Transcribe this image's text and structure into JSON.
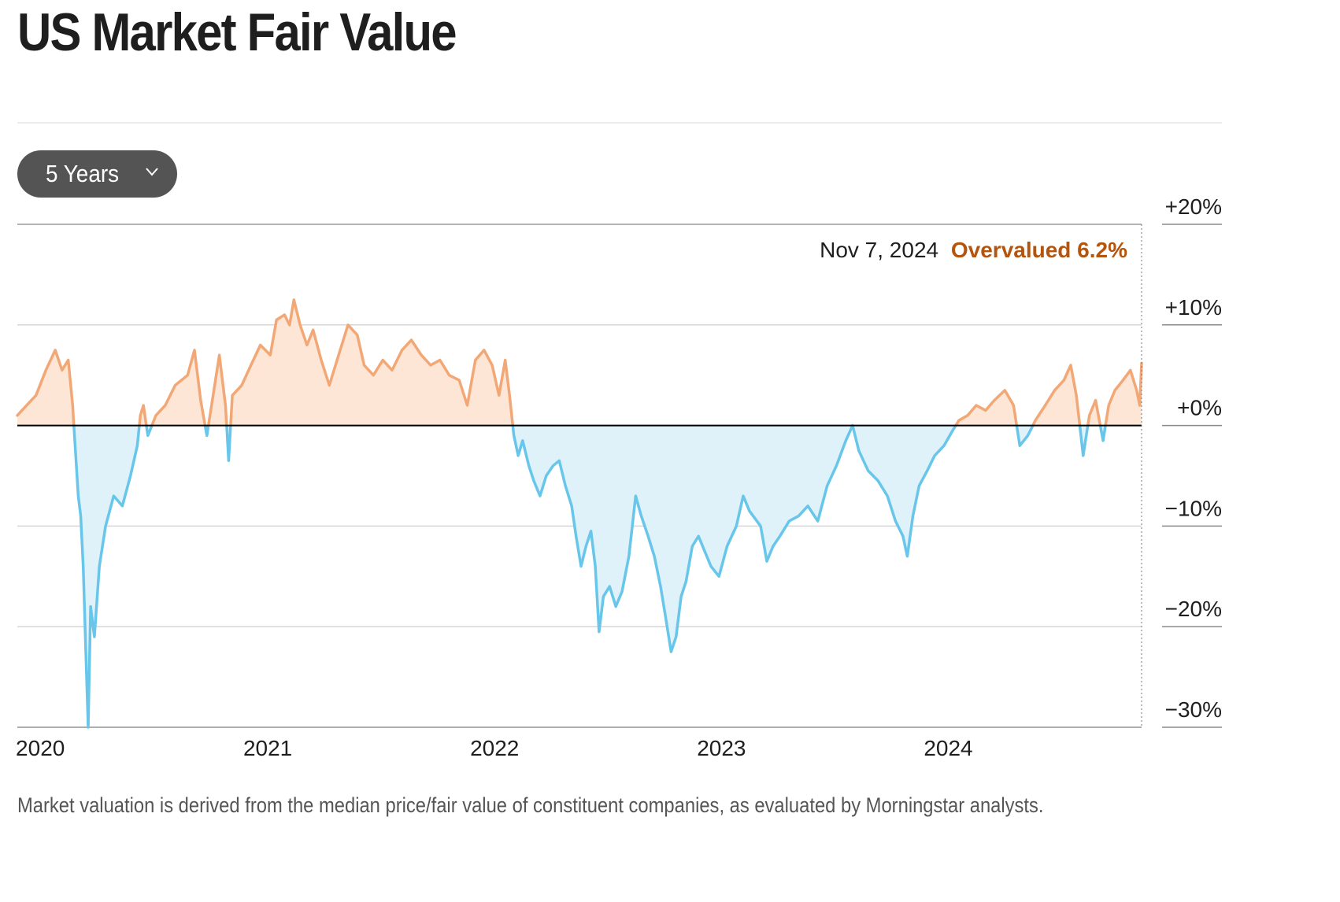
{
  "page": {
    "title": "US Market Fair Value",
    "footnote": "Market valuation is derived from the median price/fair value of constituent companies, as evaluated by Morningstar analysts."
  },
  "controls": {
    "range_select": {
      "label": "5 Years",
      "icon": "chevron-down-icon"
    }
  },
  "annotation": {
    "date": "Nov 7, 2024",
    "status": "Overvalued 6.2%"
  },
  "colors": {
    "overvalued_line": "#f2a876",
    "overvalued_fill": "#fde6d6",
    "undervalued_line": "#67c6e9",
    "undervalued_fill": "#dff2fa",
    "status_text": "#b5540c",
    "zero_line": "#000000",
    "grid": "#d6d6d6",
    "range_button": "#545454"
  },
  "chart_data": {
    "type": "area",
    "title": "US Market Fair Value",
    "xlabel": "",
    "ylabel": "",
    "x_ticks": [
      "2020",
      "2021",
      "2022",
      "2023",
      "2024"
    ],
    "y_ticks": [
      {
        "value": 20,
        "label": "+20%"
      },
      {
        "value": 10,
        "label": "+10%"
      },
      {
        "value": 0,
        "label": "+0%"
      },
      {
        "value": -10,
        "label": "−10%"
      },
      {
        "value": -20,
        "label": "−20%"
      },
      {
        "value": -30,
        "label": "−30%"
      }
    ],
    "ylim": [
      -30,
      20
    ],
    "xlim": [
      "2019-11-25",
      "2024-11-07"
    ],
    "grid": true,
    "legend": "none",
    "series": [
      {
        "points": [
          [
            "2019-11-25",
            1.0
          ],
          [
            "2019-12-10",
            2.0
          ],
          [
            "2019-12-25",
            3.0
          ],
          [
            "2020-01-10",
            5.5
          ],
          [
            "2020-01-25",
            7.5
          ],
          [
            "2020-02-05",
            5.5
          ],
          [
            "2020-02-15",
            6.5
          ],
          [
            "2020-02-22",
            2.0
          ],
          [
            "2020-02-26",
            -2.0
          ],
          [
            "2020-03-02",
            -7.0
          ],
          [
            "2020-03-06",
            -9.0
          ],
          [
            "2020-03-10",
            -14.0
          ],
          [
            "2020-03-14",
            -22.0
          ],
          [
            "2020-03-18",
            -30.0
          ],
          [
            "2020-03-22",
            -18.0
          ],
          [
            "2020-03-28",
            -21.0
          ],
          [
            "2020-04-05",
            -14.0
          ],
          [
            "2020-04-15",
            -10.0
          ],
          [
            "2020-04-28",
            -7.0
          ],
          [
            "2020-05-12",
            -8.0
          ],
          [
            "2020-05-25",
            -5.0
          ],
          [
            "2020-06-05",
            -2.0
          ],
          [
            "2020-06-10",
            1.0
          ],
          [
            "2020-06-15",
            2.0
          ],
          [
            "2020-06-22",
            -1.0
          ],
          [
            "2020-07-05",
            1.0
          ],
          [
            "2020-07-20",
            2.0
          ],
          [
            "2020-08-05",
            4.0
          ],
          [
            "2020-08-25",
            5.0
          ],
          [
            "2020-09-05",
            7.5
          ],
          [
            "2020-09-15",
            2.5
          ],
          [
            "2020-09-25",
            -1.0
          ],
          [
            "2020-10-05",
            3.0
          ],
          [
            "2020-10-15",
            7.0
          ],
          [
            "2020-10-25",
            2.0
          ],
          [
            "2020-10-30",
            -3.5
          ],
          [
            "2020-11-05",
            3.0
          ],
          [
            "2020-11-20",
            4.0
          ],
          [
            "2020-12-05",
            6.0
          ],
          [
            "2020-12-20",
            8.0
          ],
          [
            "2021-01-05",
            7.0
          ],
          [
            "2021-01-15",
            10.5
          ],
          [
            "2021-01-28",
            11.0
          ],
          [
            "2021-02-05",
            10.0
          ],
          [
            "2021-02-12",
            12.5
          ],
          [
            "2021-02-22",
            10.0
          ],
          [
            "2021-03-05",
            8.0
          ],
          [
            "2021-03-15",
            9.5
          ],
          [
            "2021-03-28",
            6.5
          ],
          [
            "2021-04-10",
            4.0
          ],
          [
            "2021-04-25",
            7.0
          ],
          [
            "2021-05-10",
            10.0
          ],
          [
            "2021-05-25",
            9.0
          ],
          [
            "2021-06-05",
            6.0
          ],
          [
            "2021-06-20",
            5.0
          ],
          [
            "2021-07-05",
            6.5
          ],
          [
            "2021-07-20",
            5.5
          ],
          [
            "2021-08-05",
            7.5
          ],
          [
            "2021-08-20",
            8.5
          ],
          [
            "2021-09-05",
            7.0
          ],
          [
            "2021-09-20",
            6.0
          ],
          [
            "2021-10-05",
            6.5
          ],
          [
            "2021-10-20",
            5.0
          ],
          [
            "2021-11-05",
            4.5
          ],
          [
            "2021-11-18",
            2.0
          ],
          [
            "2021-12-01",
            6.5
          ],
          [
            "2021-12-15",
            7.5
          ],
          [
            "2021-12-28",
            6.0
          ],
          [
            "2022-01-08",
            3.0
          ],
          [
            "2022-01-18",
            6.5
          ],
          [
            "2022-01-25",
            3.0
          ],
          [
            "2022-02-01",
            -1.0
          ],
          [
            "2022-02-08",
            -3.0
          ],
          [
            "2022-02-15",
            -1.5
          ],
          [
            "2022-02-25",
            -4.0
          ],
          [
            "2022-03-05",
            -5.5
          ],
          [
            "2022-03-15",
            -7.0
          ],
          [
            "2022-03-25",
            -5.0
          ],
          [
            "2022-04-05",
            -4.0
          ],
          [
            "2022-04-15",
            -3.5
          ],
          [
            "2022-04-25",
            -6.0
          ],
          [
            "2022-05-05",
            -8.0
          ],
          [
            "2022-05-12",
            -11.0
          ],
          [
            "2022-05-20",
            -14.0
          ],
          [
            "2022-05-28",
            -12.0
          ],
          [
            "2022-06-05",
            -10.5
          ],
          [
            "2022-06-12",
            -14.0
          ],
          [
            "2022-06-18",
            -20.5
          ],
          [
            "2022-06-25",
            -17.0
          ],
          [
            "2022-07-05",
            -16.0
          ],
          [
            "2022-07-15",
            -18.0
          ],
          [
            "2022-07-25",
            -16.5
          ],
          [
            "2022-08-05",
            -13.0
          ],
          [
            "2022-08-16",
            -7.0
          ],
          [
            "2022-08-25",
            -9.0
          ],
          [
            "2022-09-05",
            -11.0
          ],
          [
            "2022-09-15",
            -13.0
          ],
          [
            "2022-09-25",
            -16.0
          ],
          [
            "2022-10-03",
            -19.0
          ],
          [
            "2022-10-12",
            -22.5
          ],
          [
            "2022-10-20",
            -21.0
          ],
          [
            "2022-10-28",
            -17.0
          ],
          [
            "2022-11-05",
            -15.5
          ],
          [
            "2022-11-15",
            -12.0
          ],
          [
            "2022-11-25",
            -11.0
          ],
          [
            "2022-12-05",
            -12.5
          ],
          [
            "2022-12-15",
            -14.0
          ],
          [
            "2022-12-28",
            -15.0
          ],
          [
            "2023-01-10",
            -12.0
          ],
          [
            "2023-01-25",
            -10.0
          ],
          [
            "2023-02-05",
            -7.0
          ],
          [
            "2023-02-15",
            -8.5
          ],
          [
            "2023-03-05",
            -10.0
          ],
          [
            "2023-03-15",
            -13.5
          ],
          [
            "2023-03-25",
            -12.0
          ],
          [
            "2023-04-05",
            -11.0
          ],
          [
            "2023-04-20",
            -9.5
          ],
          [
            "2023-05-05",
            -9.0
          ],
          [
            "2023-05-20",
            -8.0
          ],
          [
            "2023-06-05",
            -9.5
          ],
          [
            "2023-06-20",
            -6.0
          ],
          [
            "2023-07-05",
            -4.0
          ],
          [
            "2023-07-20",
            -1.5
          ],
          [
            "2023-07-31",
            0.0
          ],
          [
            "2023-08-10",
            -2.5
          ],
          [
            "2023-08-25",
            -4.5
          ],
          [
            "2023-09-10",
            -5.5
          ],
          [
            "2023-09-25",
            -7.0
          ],
          [
            "2023-10-08",
            -9.5
          ],
          [
            "2023-10-20",
            -11.0
          ],
          [
            "2023-10-27",
            -13.0
          ],
          [
            "2023-11-05",
            -9.0
          ],
          [
            "2023-11-15",
            -6.0
          ],
          [
            "2023-11-28",
            -4.5
          ],
          [
            "2023-12-10",
            -3.0
          ],
          [
            "2023-12-25",
            -2.0
          ],
          [
            "2024-01-08",
            -0.5
          ],
          [
            "2024-01-18",
            0.5
          ],
          [
            "2024-02-01",
            1.0
          ],
          [
            "2024-02-15",
            2.0
          ],
          [
            "2024-03-01",
            1.5
          ],
          [
            "2024-03-15",
            2.5
          ],
          [
            "2024-04-01",
            3.5
          ],
          [
            "2024-04-15",
            2.0
          ],
          [
            "2024-04-25",
            -2.0
          ],
          [
            "2024-05-08",
            -1.0
          ],
          [
            "2024-05-20",
            0.5
          ],
          [
            "2024-06-05",
            2.0
          ],
          [
            "2024-06-20",
            3.5
          ],
          [
            "2024-07-05",
            4.5
          ],
          [
            "2024-07-16",
            6.0
          ],
          [
            "2024-07-25",
            3.0
          ],
          [
            "2024-08-05",
            -3.0
          ],
          [
            "2024-08-15",
            1.0
          ],
          [
            "2024-08-25",
            2.5
          ],
          [
            "2024-09-06",
            -1.5
          ],
          [
            "2024-09-15",
            2.0
          ],
          [
            "2024-09-25",
            3.5
          ],
          [
            "2024-10-08",
            4.5
          ],
          [
            "2024-10-20",
            5.5
          ],
          [
            "2024-10-30",
            3.5
          ],
          [
            "2024-11-04",
            2.0
          ],
          [
            "2024-11-07",
            6.2
          ]
        ]
      }
    ],
    "annotation": {
      "x": "2024-11-07",
      "y": 6.2,
      "text": "Nov 7, 2024 Overvalued 6.2%"
    }
  }
}
